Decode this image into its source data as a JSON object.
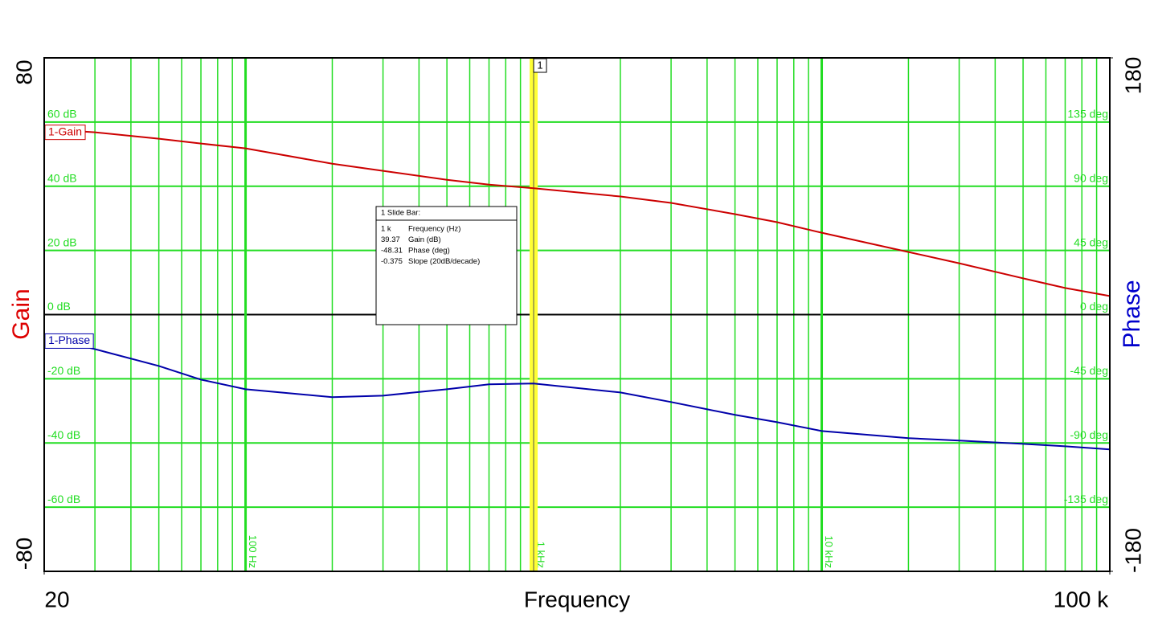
{
  "chart_data": {
    "type": "line",
    "xlabel": "Frequency",
    "ylabel": "Gain",
    "y2label": "Phase",
    "xscale": "log",
    "xlim": [
      20,
      100000
    ],
    "xticks": [
      20,
      {
        "value": 100,
        "label": "100 Hz"
      },
      {
        "value": 1000,
        "label": "1 kHz"
      },
      {
        "value": 10000,
        "label": "10 kHz"
      },
      {
        "value": 100000,
        "label": "100 k"
      }
    ],
    "xminor": [
      30,
      40,
      50,
      60,
      70,
      80,
      90,
      200,
      300,
      400,
      500,
      600,
      700,
      800,
      900,
      2000,
      3000,
      4000,
      5000,
      6000,
      7000,
      8000,
      9000,
      20000,
      30000,
      40000,
      50000,
      60000,
      70000,
      80000,
      90000
    ],
    "ylim": [
      -80,
      80
    ],
    "yticks": [
      -80,
      {
        "value": -60,
        "label": "-60 dB"
      },
      {
        "value": -40,
        "label": "-40 dB"
      },
      {
        "value": -20,
        "label": "-20 dB"
      },
      {
        "value": 0,
        "label": "0 dB"
      },
      {
        "value": 20,
        "label": "20 dB"
      },
      {
        "value": 40,
        "label": "40 dB"
      },
      {
        "value": 60,
        "label": "60 dB"
      },
      80
    ],
    "y2lim": [
      -180,
      180
    ],
    "y2ticks": [
      -180,
      {
        "value": -135,
        "label": "-135 deg"
      },
      {
        "value": -90,
        "label": "-90 deg"
      },
      {
        "value": -45,
        "label": "-45 deg"
      },
      {
        "value": 0,
        "label": "0 deg"
      },
      {
        "value": 45,
        "label": "45 deg"
      },
      {
        "value": 90,
        "label": "90 deg"
      },
      {
        "value": 135,
        "label": "135 deg"
      },
      180
    ],
    "grid": true,
    "grid_color": "#22dd22",
    "x": [
      20,
      30,
      50,
      70,
      100,
      200,
      300,
      500,
      700,
      1000,
      2000,
      3000,
      5000,
      7000,
      10000,
      20000,
      30000,
      50000,
      70000,
      100000
    ],
    "series": [
      {
        "name": "1-Gain",
        "color": "#cc0000",
        "values": [
          57.8,
          56.8,
          54.8,
          53.3,
          51.8,
          47,
          44.8,
          42,
          40.5,
          39.37,
          36.8,
          34.8,
          31.3,
          28.8,
          25.5,
          19.5,
          16,
          11.3,
          8.3,
          5.8
        ]
      },
      {
        "name": "1-Phase",
        "color": "#0000aa",
        "axis": "y2",
        "values": [
          -16.3,
          -24.2,
          -36,
          -45.6,
          -52.3,
          -57.9,
          -56.8,
          -52.3,
          -48.9,
          -48.31,
          -54.6,
          -61.3,
          -70.3,
          -75.4,
          -81.6,
          -86.6,
          -88.3,
          -90.6,
          -92.3,
          -94.5
        ]
      }
    ],
    "cursor": {
      "label": "1",
      "x": 1000,
      "color": "#ffff33"
    },
    "readout": {
      "title": "1  Slide Bar:",
      "rows": [
        [
          "1 k",
          "Frequency (Hz)"
        ],
        [
          "39.37",
          "Gain (dB)"
        ],
        [
          "-48.31",
          "Phase (deg)"
        ],
        [
          "-0.375",
          "Slope (20dB/decade)"
        ]
      ]
    }
  }
}
